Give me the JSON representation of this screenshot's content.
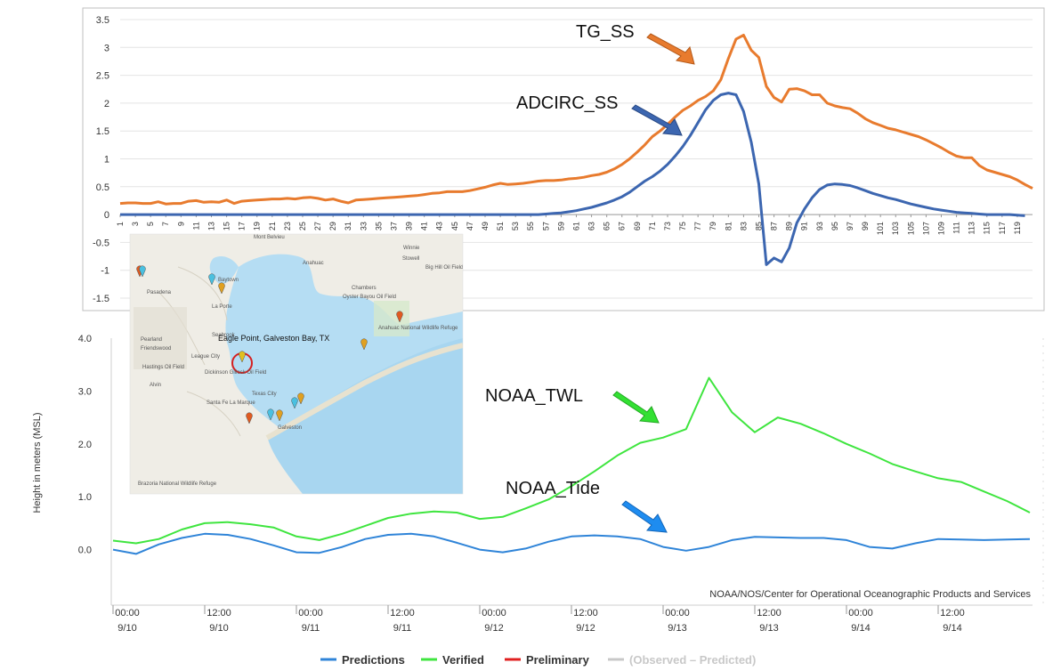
{
  "colors": {
    "tg_ss": "#E87B2E",
    "adcirc_ss": "#3C66B0",
    "predictions": "#2F84D8",
    "verified": "#3FE53F",
    "preliminary": "#E02020",
    "observed_predicted": "#C8C8C8",
    "arrow_orange": "#E87B2E",
    "arrow_blue": "#3C66B0",
    "arrow_green": "#33E033",
    "arrow_lightblue": "#1E8CF0",
    "map_water": "#B5DDF3",
    "map_land": "#EFEDE6"
  },
  "top_chart": {
    "y_ticks": [
      "3.5",
      "3",
      "2.5",
      "2",
      "1.5",
      "1",
      "0.5",
      "0",
      "-0.5",
      "-1",
      "-1.5"
    ],
    "annotations": {
      "tg_ss": "TG_SS",
      "adcirc_ss": "ADCIRC_SS"
    }
  },
  "bottom_chart": {
    "ylabel": "Height in meters (MSL)",
    "y_ticks": [
      "4.0",
      "3.0",
      "2.0",
      "1.0",
      "0.0"
    ],
    "x_ticks": [
      {
        "time": "00:00",
        "date": "9/10"
      },
      {
        "time": "12:00",
        "date": "9/10"
      },
      {
        "time": "00:00",
        "date": "9/11"
      },
      {
        "time": "12:00",
        "date": "9/11"
      },
      {
        "time": "00:00",
        "date": "9/12"
      },
      {
        "time": "12:00",
        "date": "9/12"
      },
      {
        "time": "00:00",
        "date": "9/13"
      },
      {
        "time": "12:00",
        "date": "9/13"
      },
      {
        "time": "00:00",
        "date": "9/14"
      },
      {
        "time": "12:00",
        "date": "9/14"
      }
    ],
    "credit": "NOAA/NOS/Center for Operational Oceanographic Products and Services",
    "annotations": {
      "noaa_twl": "NOAA_TWL",
      "noaa_tide": "NOAA_Tide"
    },
    "legend": [
      {
        "label": "Predictions",
        "color": "#2F84D8"
      },
      {
        "label": "Verified",
        "color": "#3FE53F"
      },
      {
        "label": "Preliminary",
        "color": "#E02020"
      },
      {
        "label": "(Observed – Predicted)",
        "color": "#C8C8C8"
      }
    ]
  },
  "map": {
    "title": "Eagle Point, Galveston Bay, TX",
    "labels": [
      "Mont Belvieu",
      "Winnie",
      "Anahuac",
      "Stowell",
      "Big Hill Oil Field",
      "Baytown",
      "Pasadena",
      "La Porte",
      "Chambers",
      "Oyster Bayou Oil Field",
      "Seabrook",
      "Pearland",
      "Friendswood",
      "League City",
      "Hastings Oil Field",
      "Alvin",
      "Dickinson Gillock Oil Field",
      "Texas City",
      "Santa Fe",
      "La Marque",
      "Galveston",
      "Anahuac National Wildlife Refuge",
      "Brazoria National Wildlife Refuge"
    ]
  },
  "chart_data": [
    {
      "type": "line",
      "x_tick_labels": [
        "1",
        "3",
        "5",
        "7",
        "9",
        "11",
        "13",
        "15",
        "17",
        "19",
        "21",
        "23",
        "25",
        "27",
        "29",
        "31",
        "33",
        "35",
        "37",
        "39",
        "41",
        "43",
        "45",
        "47",
        "49",
        "51",
        "53",
        "55",
        "57",
        "59",
        "61",
        "63",
        "65",
        "67",
        "69",
        "71",
        "73",
        "75",
        "77",
        "79",
        "81",
        "83",
        "85",
        "87",
        "89",
        "91",
        "93",
        "95",
        "97",
        "99",
        "101",
        "103",
        "105",
        "107",
        "109",
        "111",
        "113",
        "115",
        "117",
        "119"
      ],
      "ylim": [
        -1.5,
        3.5
      ],
      "grid": true,
      "series": [
        {
          "name": "TG_SS",
          "values": [
            0.2,
            0.21,
            0.21,
            0.2,
            0.2,
            0.23,
            0.19,
            0.2,
            0.2,
            0.24,
            0.25,
            0.22,
            0.23,
            0.22,
            0.26,
            0.2,
            0.24,
            0.25,
            0.26,
            0.27,
            0.28,
            0.28,
            0.29,
            0.28,
            0.3,
            0.31,
            0.29,
            0.26,
            0.28,
            0.24,
            0.21,
            0.26,
            0.27,
            0.28,
            0.29,
            0.3,
            0.31,
            0.32,
            0.33,
            0.34,
            0.36,
            0.38,
            0.39,
            0.41,
            0.41,
            0.41,
            0.43,
            0.46,
            0.49,
            0.53,
            0.56,
            0.54,
            0.55,
            0.56,
            0.58,
            0.6,
            0.61,
            0.61,
            0.62,
            0.64,
            0.65,
            0.67,
            0.7,
            0.72,
            0.76,
            0.82,
            0.9,
            1.0,
            1.12,
            1.25,
            1.4,
            1.5,
            1.62,
            1.75,
            1.87,
            1.95,
            2.05,
            2.12,
            2.22,
            2.42,
            2.8,
            3.15,
            3.22,
            2.95,
            2.82,
            2.3,
            2.1,
            2.02,
            2.25,
            2.26,
            2.22,
            2.15,
            2.15,
            2.0,
            1.95,
            1.92,
            1.9,
            1.82,
            1.72,
            1.65,
            1.6,
            1.55,
            1.52,
            1.48,
            1.44,
            1.4,
            1.34,
            1.27,
            1.2,
            1.12,
            1.05,
            1.02,
            1.02,
            0.88,
            0.8,
            0.76,
            0.72,
            0.68,
            0.62,
            0.54,
            0.47
          ]
        },
        {
          "name": "ADCIRC_SS",
          "values": [
            0.0,
            0.0,
            0.0,
            0.0,
            0.0,
            0.0,
            0.0,
            0.0,
            0.0,
            0.0,
            0.0,
            0.0,
            0.0,
            0.0,
            0.0,
            0.0,
            0.0,
            0.0,
            0.0,
            0.0,
            0.0,
            0.0,
            0.0,
            0.0,
            0.0,
            0.0,
            0.0,
            0.0,
            0.0,
            0.0,
            0.0,
            0.0,
            0.0,
            0.0,
            0.0,
            0.0,
            0.0,
            0.0,
            0.0,
            0.0,
            0.0,
            0.0,
            0.0,
            0.0,
            0.0,
            0.0,
            0.0,
            0.0,
            0.0,
            0.0,
            0.0,
            0.0,
            0.0,
            0.0,
            0.0,
            0.0,
            0.01,
            0.02,
            0.03,
            0.05,
            0.07,
            0.1,
            0.13,
            0.17,
            0.21,
            0.26,
            0.32,
            0.4,
            0.5,
            0.6,
            0.68,
            0.78,
            0.9,
            1.05,
            1.22,
            1.42,
            1.65,
            1.88,
            2.05,
            2.15,
            2.18,
            2.15,
            1.85,
            1.3,
            0.55,
            -0.9,
            -0.78,
            -0.85,
            -0.6,
            -0.15,
            0.1,
            0.3,
            0.45,
            0.53,
            0.55,
            0.54,
            0.52,
            0.48,
            0.43,
            0.38,
            0.34,
            0.3,
            0.27,
            0.23,
            0.19,
            0.16,
            0.13,
            0.1,
            0.08,
            0.06,
            0.04,
            0.03,
            0.02,
            0.01,
            0.0,
            0.0,
            0.0,
            0.0,
            -0.01,
            -0.02
          ]
        }
      ]
    },
    {
      "type": "line",
      "ylabel": "Height in meters (MSL)",
      "ylim": [
        -1.0,
        4.0
      ],
      "x_range": [
        "2025-09-10 00:00",
        "2025-09-15 00:00"
      ],
      "x_tick_labels": [
        "00:00 9/10",
        "12:00 9/10",
        "00:00 9/11",
        "12:00 9/11",
        "00:00 9/12",
        "12:00 9/12",
        "00:00 9/13",
        "12:00 9/13",
        "00:00 9/14",
        "12:00 9/14"
      ],
      "grid": false,
      "series": [
        {
          "name": "Verified",
          "x": [
            0,
            3,
            6,
            9,
            12,
            15,
            18,
            21,
            24,
            27,
            30,
            33,
            36,
            39,
            42,
            45,
            48,
            51,
            54,
            57,
            60,
            63,
            66,
            69,
            72,
            75,
            78,
            81,
            84,
            87,
            90,
            93,
            96,
            99,
            102,
            105,
            108,
            111,
            114,
            117,
            120
          ],
          "values": [
            0.17,
            0.12,
            0.2,
            0.38,
            0.5,
            0.52,
            0.48,
            0.42,
            0.25,
            0.18,
            0.3,
            0.45,
            0.6,
            0.68,
            0.72,
            0.7,
            0.58,
            0.62,
            0.78,
            0.95,
            1.2,
            1.48,
            1.78,
            2.02,
            2.12,
            2.28,
            3.25,
            2.6,
            2.22,
            2.5,
            2.38,
            2.2,
            2.0,
            1.82,
            1.62,
            1.48,
            1.35,
            1.28,
            1.1,
            0.92,
            0.7
          ]
        },
        {
          "name": "Predictions",
          "x": [
            0,
            3,
            6,
            9,
            12,
            15,
            18,
            21,
            24,
            27,
            30,
            33,
            36,
            39,
            42,
            45,
            48,
            51,
            54,
            57,
            60,
            63,
            66,
            69,
            72,
            75,
            78,
            81,
            84,
            87,
            90,
            93,
            96,
            99,
            102,
            105,
            108,
            111,
            114,
            117,
            120
          ],
          "values": [
            0.0,
            -0.08,
            0.1,
            0.22,
            0.3,
            0.28,
            0.2,
            0.08,
            -0.05,
            -0.06,
            0.05,
            0.2,
            0.28,
            0.3,
            0.25,
            0.13,
            0.0,
            -0.05,
            0.02,
            0.15,
            0.25,
            0.27,
            0.25,
            0.2,
            0.05,
            -0.02,
            0.05,
            0.18,
            0.24,
            0.23,
            0.22,
            0.22,
            0.18,
            0.05,
            0.02,
            0.12,
            0.2,
            0.19,
            0.18,
            0.19,
            0.2
          ]
        }
      ]
    }
  ]
}
